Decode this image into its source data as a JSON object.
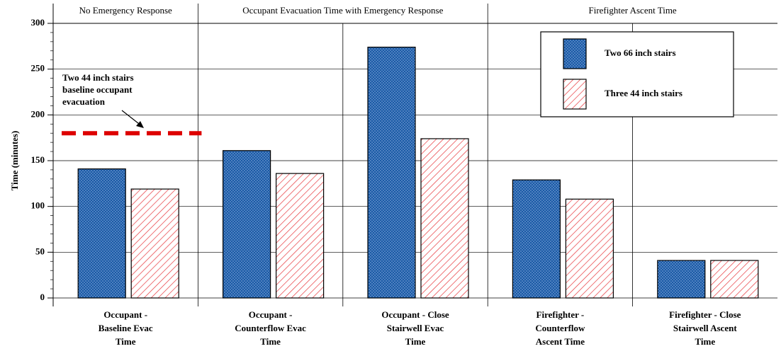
{
  "chart_data": {
    "type": "bar",
    "categories": [
      [
        "Occupant -",
        "Baseline Evac",
        "Time"
      ],
      [
        "Occupant -",
        "Counterflow Evac",
        "Time"
      ],
      [
        "Occupant - Close",
        "Stairwell Evac",
        "Time"
      ],
      [
        "Firefighter -",
        "Counterflow",
        "Ascent Time"
      ],
      [
        "Firefighter - Close",
        "Stairwell Ascent",
        "Time"
      ]
    ],
    "sections": [
      "No Emergency Response",
      "Occupant Evacuation Time with Emergency Response",
      "Firefighter Ascent Time"
    ],
    "series": [
      {
        "name": "Two 66 inch stairs",
        "color": "#1a5aa6",
        "values": [
          141,
          161,
          274,
          129,
          41
        ]
      },
      {
        "name": "Three 44 inch stairs",
        "color": "#e8383d",
        "values": [
          119,
          136,
          174,
          108,
          41
        ]
      }
    ],
    "y_label": "Time (minutes)",
    "ylim": [
      0,
      300
    ],
    "yticks": [
      0,
      50,
      100,
      150,
      200,
      250,
      300
    ],
    "grid": true,
    "reference_line": {
      "value": 180,
      "color": "#dd0000",
      "label": [
        "Two 44 inch stairs",
        "baseline occupant",
        "evacuation"
      ]
    }
  }
}
